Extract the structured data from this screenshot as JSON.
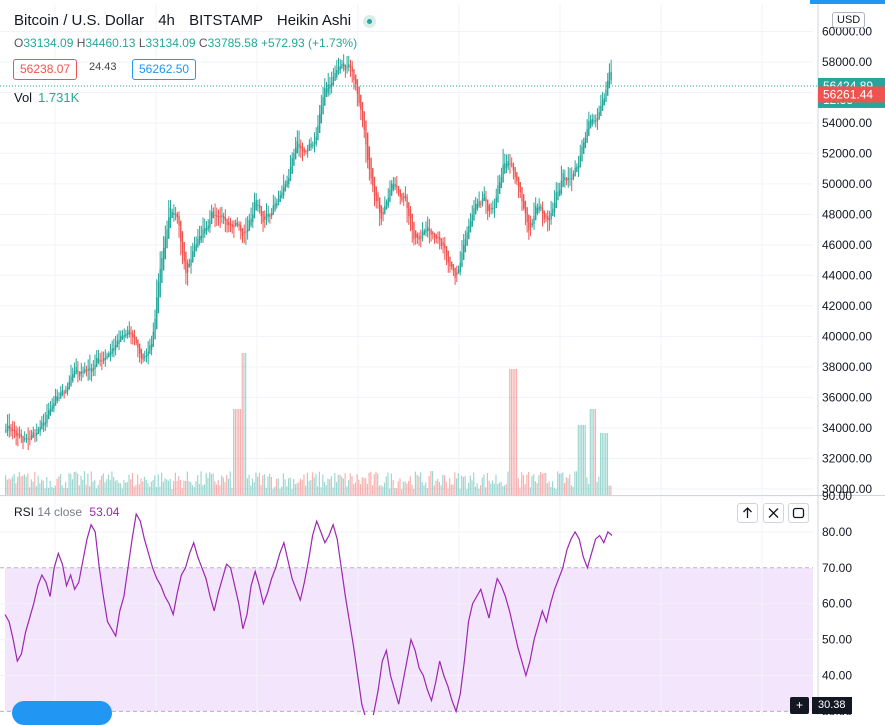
{
  "header": {
    "symbol": "Bitcoin / U.S. Dollar",
    "interval": "4h",
    "exchange": "BITSTAMP",
    "chart_style": "Heikin Ashi",
    "ohlc": {
      "o_label": "O",
      "o": "33134.09",
      "h_label": "H",
      "h": "34460.13",
      "l_label": "L",
      "l": "33134.09",
      "c_label": "C",
      "c": "33785.58",
      "change": "+572.93 (+1.73%)"
    }
  },
  "trade": {
    "sell": "56238.07",
    "spread": "24.43",
    "buy": "56262.50"
  },
  "volume": {
    "label": "Vol",
    "value": "1.731K"
  },
  "rsi": {
    "label": "RSI",
    "settings": "14 close",
    "value": "53.04",
    "corner_value": "30.38"
  },
  "price_axis": {
    "currency": "USD"
  },
  "markers": {
    "last_price": "56424.89",
    "countdown": "12:38",
    "bid_price": "56261.44"
  },
  "colors": {
    "up": "#26a69a",
    "down": "#ef5350",
    "rsi_line": "#9c27b0",
    "rsi_band": "#f3e5fc",
    "last_price": "#26a69a",
    "bid_price": "#ef5350"
  },
  "icons": {
    "buttons": [
      "arrow-up-icon",
      "close-icon",
      "maximize-icon"
    ],
    "scale": "plus-icon",
    "status": "live-dot-icon"
  },
  "chart_data": [
    {
      "type": "candlestick",
      "title": "Bitcoin / U.S. Dollar, 4h, BITSTAMP, Heikin Ashi",
      "y_ticks": [
        30000,
        32000,
        34000,
        36000,
        38000,
        40000,
        42000,
        44000,
        46000,
        48000,
        50000,
        52000,
        54000,
        56000,
        58000,
        60000
      ],
      "y_tick_labels": [
        "30000.00",
        "32000.00",
        "34000.00",
        "36000.00",
        "38000.00",
        "40000.00",
        "42000.00",
        "44000.00",
        "46000.00",
        "48000.00",
        "50000.00",
        "52000.00",
        "54000.00",
        "56000.00",
        "58000.00",
        "60000.00"
      ],
      "ylim": [
        29600,
        61800
      ],
      "grid": true,
      "anchors": [
        [
          0,
          34200
        ],
        [
          10,
          33000
        ],
        [
          20,
          34000
        ],
        [
          30,
          36000
        ],
        [
          40,
          37600
        ],
        [
          50,
          38000
        ],
        [
          60,
          39000
        ],
        [
          70,
          40200
        ],
        [
          75,
          39800
        ],
        [
          80,
          38200
        ],
        [
          85,
          40000
        ],
        [
          90,
          45000
        ],
        [
          95,
          48000
        ],
        [
          100,
          47500
        ],
        [
          105,
          44200
        ],
        [
          110,
          46000
        ],
        [
          120,
          48000
        ],
        [
          130,
          47500
        ],
        [
          140,
          46800
        ],
        [
          145,
          48600
        ],
        [
          150,
          47500
        ],
        [
          160,
          49200
        ],
        [
          165,
          50800
        ],
        [
          170,
          52600
        ],
        [
          175,
          52000
        ],
        [
          180,
          53000
        ],
        [
          185,
          56000
        ],
        [
          190,
          57000
        ],
        [
          195,
          58000
        ],
        [
          200,
          57500
        ],
        [
          205,
          55800
        ],
        [
          208,
          53600
        ],
        [
          212,
          51000
        ],
        [
          218,
          47800
        ],
        [
          225,
          50000
        ],
        [
          232,
          49000
        ],
        [
          238,
          46500
        ],
        [
          245,
          47000
        ],
        [
          252,
          46800
        ],
        [
          258,
          44500
        ],
        [
          262,
          43600
        ],
        [
          266,
          45800
        ],
        [
          272,
          48000
        ],
        [
          278,
          49000
        ],
        [
          284,
          48000
        ],
        [
          290,
          51500
        ],
        [
          295,
          51000
        ],
        [
          300,
          49000
        ],
        [
          305,
          47000
        ],
        [
          310,
          48600
        ],
        [
          315,
          47600
        ],
        [
          320,
          49000
        ],
        [
          325,
          50600
        ],
        [
          330,
          50400
        ],
        [
          335,
          52000
        ],
        [
          340,
          54000
        ],
        [
          345,
          54600
        ],
        [
          350,
          56500
        ],
        [
          352,
          57300
        ]
      ],
      "ranges": [
        [
          0,
          354
        ]
      ],
      "volume": {
        "max_value": "1.731K",
        "spikes": [
          [
            82,
            7
          ],
          [
            84,
            14
          ],
          [
            180,
            12
          ],
          [
            204,
            5
          ],
          [
            208,
            7
          ],
          [
            212,
            4
          ],
          [
            216,
            4
          ]
        ]
      }
    },
    {
      "type": "line",
      "title": "RSI 14 close",
      "y_ticks": [
        30,
        40,
        50,
        60,
        70,
        80,
        90
      ],
      "y_tick_labels": [
        "30.00",
        "40.00",
        "50.00",
        "60.00",
        "70.00",
        "80.00",
        "90.00"
      ],
      "ylim": [
        29,
        90
      ],
      "band": [
        30,
        70
      ],
      "values": [
        57,
        55,
        50,
        44,
        46,
        52,
        56,
        60,
        65,
        68,
        66,
        62,
        70,
        74,
        71,
        65,
        68,
        64,
        66,
        72,
        78,
        82,
        80,
        70,
        62,
        55,
        53,
        51,
        58,
        62,
        70,
        78,
        85,
        83,
        78,
        74,
        70,
        67,
        65,
        62,
        60,
        57,
        63,
        68,
        70,
        74,
        77,
        73,
        70,
        67,
        62,
        58,
        63,
        67,
        71,
        70,
        65,
        60,
        53,
        57,
        65,
        69,
        65,
        60,
        63,
        67,
        70,
        74,
        77,
        72,
        67,
        64,
        61,
        66,
        72,
        79,
        83,
        80,
        77,
        79,
        82,
        78,
        70,
        62,
        55,
        48,
        40,
        32,
        28,
        25,
        30,
        36,
        44,
        47,
        40,
        36,
        32,
        38,
        44,
        50,
        47,
        42,
        40,
        36,
        33,
        38,
        44,
        40,
        37,
        33,
        30,
        35,
        44,
        55,
        60,
        62,
        64,
        60,
        56,
        62,
        67,
        65,
        62,
        58,
        53,
        48,
        44,
        40,
        44,
        50,
        54,
        58,
        55,
        60,
        64,
        67,
        70,
        75,
        78,
        80,
        78,
        73,
        70,
        74,
        78,
        79,
        77,
        80,
        79
      ]
    }
  ]
}
